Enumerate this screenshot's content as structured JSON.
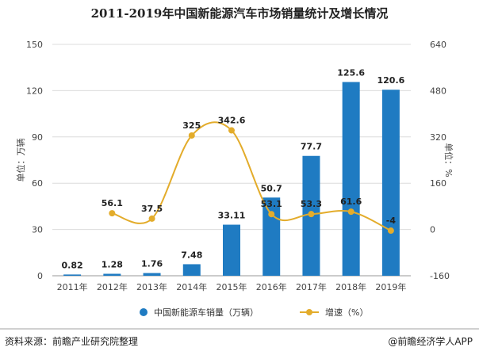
{
  "title": "2011-2019年中国新能源汽车市场销量统计及增长情况",
  "footer": {
    "source": "资料来源：前瞻产业研究院整理",
    "brand": "@前瞻经济学人APP"
  },
  "colors": {
    "bar": "#1f7bc2",
    "line": "#e3ac2b",
    "grid": "#dcdcdc",
    "axis_text": "#444444"
  },
  "chart_data": {
    "type": "bar",
    "categories": [
      "2011年",
      "2012年",
      "2013年",
      "2014年",
      "2015年",
      "2016年",
      "2017年",
      "2018年",
      "2019年"
    ],
    "series": [
      {
        "name": "中国新能源车销量（万辆）",
        "type": "bar",
        "axis": "left",
        "values": [
          0.82,
          1.28,
          1.76,
          7.48,
          33.11,
          50.7,
          77.7,
          125.6,
          120.6
        ],
        "labels": [
          "0.82",
          "1.28",
          "1.76",
          "7.48",
          "33.11",
          "50.7",
          "77.7",
          "125.6",
          "120.6"
        ]
      },
      {
        "name": "增速（%）",
        "type": "line",
        "axis": "right",
        "values": [
          null,
          56.1,
          37.5,
          325,
          342.6,
          53.1,
          53.3,
          61.6,
          -4
        ],
        "labels": [
          "",
          "56.1",
          "37.5",
          "325",
          "342.6",
          "53.1",
          "53.3",
          "61.6",
          "-4"
        ]
      }
    ],
    "ylabel": "单位：万辆",
    "y2label": "单位：%",
    "ylim": [
      0,
      150
    ],
    "y2lim": [
      -160,
      640
    ],
    "yticks": [
      0,
      30,
      60,
      90,
      120,
      150
    ],
    "y2ticks": [
      -160,
      0,
      160,
      320,
      480,
      640
    ],
    "grid": true,
    "legend": "bottom"
  }
}
